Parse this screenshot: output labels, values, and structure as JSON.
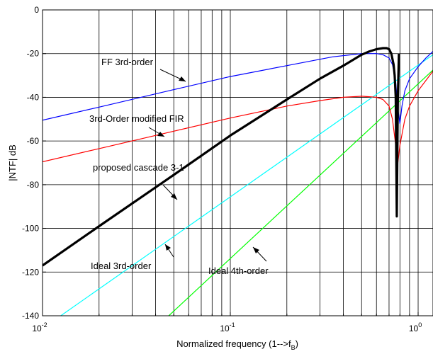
{
  "chart_data": {
    "type": "line",
    "title": "",
    "xlabel": "Normalized frequency (1-->f",
    "xlabel_sub": "B",
    "xlabel_tail": ")",
    "ylabel": "|NTF| dB",
    "xscale": "log",
    "xlim": [
      0.01,
      1.2
    ],
    "ylim": [
      -140,
      0
    ],
    "grid": true,
    "y_ticks": [
      0,
      -20,
      -40,
      -60,
      -80,
      -100,
      -120,
      -140
    ],
    "y_tick_labels": [
      "0",
      "-20",
      "-40",
      "-60",
      "-80",
      "-100",
      "-120",
      "-140"
    ],
    "x_ticks": [
      {
        "value": 0.01,
        "base": "10",
        "exp": "-2"
      },
      {
        "value": 0.1,
        "base": "10",
        "exp": "-1"
      },
      {
        "value": 1,
        "base": "10",
        "exp": "0"
      }
    ],
    "series": [
      {
        "key": "ff3",
        "color": "#0000ff",
        "width": 1.2,
        "x": [
          0.01,
          0.02,
          0.05,
          0.1,
          0.2,
          0.35,
          0.5,
          0.6,
          0.65,
          0.7,
          0.73,
          0.76,
          0.78,
          0.8,
          0.82,
          0.85,
          0.9,
          1.0,
          1.1,
          1.2
        ],
        "y": [
          -50.5,
          -44.5,
          -36.5,
          -30.5,
          -25.5,
          -21.5,
          -20,
          -20,
          -20.5,
          -22,
          -25,
          -33,
          -45,
          -52,
          -44,
          -37,
          -31.5,
          -26,
          -22,
          -19
        ]
      },
      {
        "key": "fir3",
        "color": "#ff0000",
        "width": 1.2,
        "x": [
          0.01,
          0.02,
          0.05,
          0.1,
          0.2,
          0.3,
          0.4,
          0.5,
          0.6,
          0.65,
          0.7,
          0.73,
          0.76,
          0.78,
          0.8,
          0.85,
          0.9,
          1.0,
          1.2
        ],
        "y": [
          -69.5,
          -63.5,
          -55.5,
          -49.5,
          -44,
          -41.5,
          -40,
          -39.5,
          -40,
          -41,
          -44,
          -50,
          -62,
          -70,
          -62,
          -50,
          -44,
          -37,
          -28
        ]
      },
      {
        "key": "cascade31",
        "color": "#000000",
        "width": 3.2,
        "x": [
          0.01,
          0.02,
          0.05,
          0.1,
          0.2,
          0.3,
          0.4,
          0.5,
          0.55,
          0.6,
          0.65,
          0.68,
          0.7,
          0.72,
          0.74,
          0.75,
          0.76,
          0.77,
          0.78,
          0.79
        ],
        "y": [
          -117,
          -99,
          -75.5,
          -57.5,
          -41,
          -31.5,
          -25.5,
          -20.5,
          -19,
          -18,
          -17.5,
          -17.5,
          -18,
          -20,
          -25,
          -30,
          -40,
          -94.5,
          -40,
          -20
        ]
      },
      {
        "key": "ideal3",
        "color": "#00ffff",
        "width": 1.2,
        "x": [
          0.0125,
          1.2
        ],
        "y": [
          -140,
          -20.5
        ]
      },
      {
        "key": "ideal4",
        "color": "#00ff00",
        "width": 1.2,
        "x": [
          0.047,
          1.2
        ],
        "y": [
          -140,
          -27.5
        ]
      }
    ],
    "annotations": [
      {
        "text": "FF 3rd-order"
      },
      {
        "text": "3rd-Order modified FIR"
      },
      {
        "text": "proposed cascade 3-1"
      },
      {
        "text": "Ideal 3rd-order"
      },
      {
        "text": "Ideal 4th-order"
      }
    ]
  }
}
